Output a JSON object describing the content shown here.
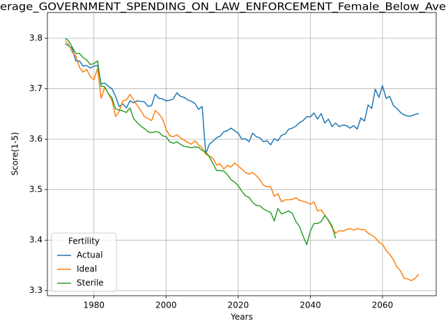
{
  "chart_data": {
    "type": "line",
    "title": "erage_GOVERNMENT_SPENDING_ON_LAW_ENFORCEMENT_Female_Below_Ave",
    "xlabel": "Years",
    "ylabel": "Score(1-5)",
    "legend_title": "Fertility",
    "legend": "lower left",
    "grid": true,
    "xlim": [
      1967.1,
      2074.9
    ],
    "xticks": [
      1980,
      2000,
      2020,
      2040,
      2060
    ],
    "ylim": [
      3.29,
      3.851
    ],
    "yticks": [
      3.3,
      3.4,
      3.5,
      3.6,
      3.7,
      3.8
    ],
    "x": [
      1972,
      1973,
      1974,
      1975,
      1976,
      1977,
      1978,
      1979,
      1980,
      1981,
      1982,
      1983,
      1984,
      1985,
      1986,
      1987,
      1988,
      1989,
      1990,
      1991,
      1992,
      1993,
      1994,
      1995,
      1996,
      1997,
      1998,
      1999,
      2000,
      2001,
      2002,
      2003,
      2004,
      2005,
      2006,
      2007,
      2008,
      2009,
      2010,
      2011,
      2012,
      2013,
      2014,
      2015,
      2016,
      2017,
      2018,
      2019,
      2020,
      2021,
      2022,
      2023,
      2024,
      2025,
      2026,
      2027,
      2028,
      2029,
      2030,
      2031,
      2032,
      2033,
      2034,
      2035,
      2036,
      2037,
      2038,
      2039,
      2040,
      2041,
      2042,
      2043,
      2044,
      2045,
      2046,
      2047,
      2048,
      2049,
      2050,
      2051,
      2052,
      2053,
      2054,
      2055,
      2056,
      2057,
      2058,
      2059,
      2060,
      2061,
      2062,
      2063,
      2064,
      2065,
      2066,
      2067,
      2068,
      2069,
      2070
    ],
    "series": [
      {
        "name": "Actual",
        "color": "#1f77b4",
        "values": [
          3.789,
          3.785,
          3.78,
          3.755,
          3.755,
          3.745,
          3.746,
          3.741,
          3.745,
          3.746,
          3.71,
          3.711,
          3.705,
          3.7,
          3.685,
          3.665,
          3.67,
          3.662,
          3.676,
          3.672,
          3.676,
          3.675,
          3.674,
          3.665,
          3.667,
          3.689,
          3.681,
          3.68,
          3.676,
          3.677,
          3.68,
          3.692,
          3.685,
          3.683,
          3.678,
          3.675,
          3.671,
          3.659,
          3.665,
          3.571,
          3.59,
          3.596,
          3.603,
          3.606,
          3.615,
          3.617,
          3.622,
          3.617,
          3.612,
          3.6,
          3.601,
          3.595,
          3.612,
          3.605,
          3.603,
          3.595,
          3.597,
          3.589,
          3.601,
          3.597,
          3.608,
          3.61,
          3.62,
          3.622,
          3.626,
          3.633,
          3.637,
          3.645,
          3.644,
          3.652,
          3.64,
          3.651,
          3.632,
          3.64,
          3.625,
          3.632,
          3.625,
          3.628,
          3.627,
          3.622,
          3.627,
          3.62,
          3.642,
          3.636,
          3.668,
          3.661,
          3.699,
          3.683,
          3.706,
          3.681,
          3.685,
          3.667,
          3.661,
          3.653,
          3.648,
          3.646,
          3.646,
          3.649,
          3.651
        ]
      },
      {
        "name": "Ideal",
        "color": "#ff7f0e",
        "values": [
          3.795,
          3.788,
          3.772,
          3.765,
          3.742,
          3.733,
          3.738,
          3.724,
          3.718,
          3.74,
          3.681,
          3.703,
          3.69,
          3.677,
          3.645,
          3.655,
          3.676,
          3.678,
          3.689,
          3.678,
          3.667,
          3.657,
          3.645,
          3.641,
          3.637,
          3.657,
          3.65,
          3.641,
          3.62,
          3.607,
          3.605,
          3.609,
          3.603,
          3.598,
          3.594,
          3.59,
          3.597,
          3.589,
          3.583,
          3.57,
          3.567,
          3.562,
          3.549,
          3.551,
          3.541,
          3.548,
          3.545,
          3.553,
          3.547,
          3.541,
          3.534,
          3.531,
          3.534,
          3.528,
          3.52,
          3.509,
          3.506,
          3.506,
          3.487,
          3.492,
          3.476,
          3.48,
          3.48,
          3.481,
          3.484,
          3.479,
          3.477,
          3.475,
          3.471,
          3.476,
          3.458,
          3.46,
          3.45,
          3.439,
          3.425,
          3.414,
          3.419,
          3.418,
          3.421,
          3.423,
          3.42,
          3.423,
          3.421,
          3.421,
          3.414,
          3.41,
          3.405,
          3.396,
          3.392,
          3.38,
          3.372,
          3.362,
          3.347,
          3.339,
          3.325,
          3.323,
          3.32,
          3.324,
          3.333
        ]
      },
      {
        "name": "Sterile",
        "color": "#2ca02c",
        "values": [
          3.8,
          3.795,
          3.782,
          3.77,
          3.77,
          3.762,
          3.757,
          3.748,
          3.75,
          3.755,
          3.705,
          3.704,
          3.69,
          3.682,
          3.66,
          3.658,
          3.656,
          3.653,
          3.662,
          3.641,
          3.633,
          3.626,
          3.621,
          3.615,
          3.613,
          3.615,
          3.614,
          3.607,
          3.605,
          3.595,
          3.592,
          3.595,
          3.59,
          3.586,
          3.585,
          3.583,
          3.585,
          3.584,
          3.578,
          3.575,
          3.565,
          3.552,
          3.538,
          3.538,
          3.537,
          3.53,
          3.52,
          3.515,
          3.508,
          3.497,
          3.488,
          3.485,
          3.475,
          3.469,
          3.468,
          3.462,
          3.458,
          3.455,
          3.438,
          3.463,
          3.452,
          3.455,
          3.458,
          3.453,
          3.437,
          3.427,
          3.408,
          3.391,
          3.418,
          3.433,
          3.433,
          3.437,
          3.449,
          3.44,
          3.428,
          3.404,
          null,
          null,
          null,
          null,
          null,
          null,
          null,
          null,
          null,
          null,
          null,
          null,
          null,
          null,
          null,
          null,
          null,
          null,
          null,
          null,
          null,
          null,
          null
        ]
      }
    ]
  }
}
